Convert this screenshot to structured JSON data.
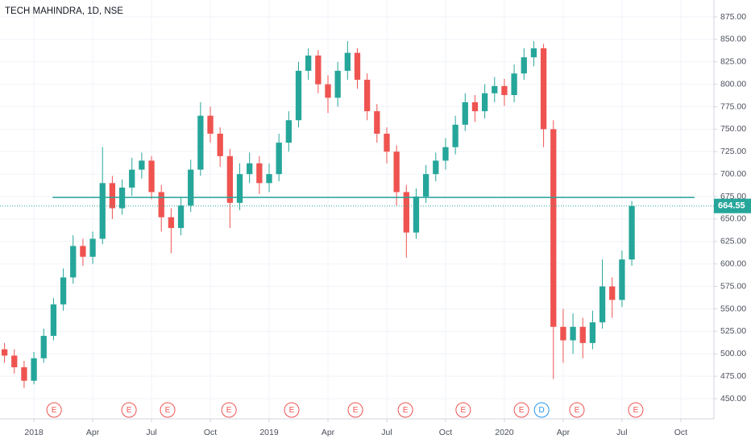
{
  "chart_data": {
    "type": "candlestick",
    "title": "TECH MAHINDRA, 1D, NSE",
    "x": [
      -1.5,
      -1,
      -0.5,
      0,
      0.5,
      1,
      1.5,
      2,
      2.5,
      3,
      3.5,
      4,
      4.5,
      5,
      5.5,
      6,
      6.5,
      7,
      7.5,
      8,
      8.5,
      9,
      9.5,
      10,
      10.5,
      11,
      11.5,
      12,
      12.5,
      13,
      13.5,
      14,
      14.5,
      15,
      15.5,
      16,
      16.5,
      17,
      17.5,
      18,
      18.5,
      19,
      19.5,
      20,
      20.5,
      21,
      21.5,
      22,
      22.5,
      23,
      23.5,
      24,
      24.5,
      25,
      25.5,
      26,
      26.5,
      27,
      27.5,
      28,
      28.5,
      29,
      29.5,
      30,
      30.5
    ],
    "open": [
      505,
      498,
      485,
      470,
      495,
      520,
      555,
      585,
      620,
      608,
      628,
      690,
      662,
      685,
      705,
      715,
      680,
      652,
      640,
      665,
      705,
      765,
      745,
      720,
      668,
      700,
      712,
      690,
      700,
      735,
      760,
      815,
      832,
      800,
      785,
      815,
      835,
      805,
      770,
      745,
      725,
      680,
      635,
      675,
      700,
      715,
      730,
      755,
      780,
      770,
      790,
      798,
      788,
      812,
      830,
      840,
      750,
      530,
      515,
      530,
      512,
      535,
      575,
      560,
      605
    ],
    "high": [
      512,
      505,
      492,
      502,
      528,
      562,
      595,
      632,
      628,
      636,
      730,
      698,
      694,
      718,
      724,
      720,
      688,
      662,
      674,
      716,
      780,
      775,
      752,
      728,
      712,
      724,
      720,
      712,
      745,
      770,
      825,
      840,
      838,
      810,
      825,
      848,
      840,
      812,
      778,
      752,
      732,
      688,
      684,
      710,
      724,
      740,
      765,
      790,
      788,
      800,
      808,
      806,
      822,
      840,
      848,
      845,
      760,
      550,
      545,
      540,
      548,
      605,
      585,
      615,
      670
    ],
    "low": [
      490,
      478,
      462,
      466,
      490,
      515,
      548,
      578,
      598,
      600,
      622,
      650,
      655,
      676,
      695,
      672,
      636,
      612,
      632,
      658,
      698,
      735,
      708,
      640,
      660,
      690,
      678,
      680,
      692,
      725,
      752,
      805,
      790,
      768,
      775,
      805,
      795,
      760,
      735,
      712,
      665,
      607,
      628,
      668,
      692,
      705,
      722,
      748,
      758,
      762,
      780,
      776,
      780,
      805,
      820,
      730,
      472,
      490,
      500,
      495,
      505,
      528,
      540,
      552,
      598
    ],
    "close": [
      498,
      485,
      470,
      495,
      520,
      555,
      585,
      620,
      608,
      628,
      690,
      662,
      685,
      705,
      715,
      680,
      652,
      640,
      665,
      705,
      765,
      745,
      720,
      668,
      700,
      712,
      690,
      700,
      735,
      760,
      815,
      832,
      800,
      785,
      815,
      835,
      805,
      770,
      745,
      725,
      680,
      635,
      675,
      700,
      715,
      730,
      755,
      780,
      770,
      790,
      798,
      788,
      812,
      830,
      840,
      750,
      530,
      515,
      530,
      512,
      535,
      575,
      560,
      605,
      664.55
    ],
    "up_color": "#26a69a",
    "down_color": "#ef5350",
    "xlim": [
      -1.73,
      34.69
    ],
    "ylim": [
      427.6,
      893.8
    ],
    "xticks": [
      {
        "value": 0,
        "label": "2018"
      },
      {
        "value": 3,
        "label": "Apr"
      },
      {
        "value": 6,
        "label": "Jul"
      },
      {
        "value": 9,
        "label": "Oct"
      },
      {
        "value": 12,
        "label": "2019"
      },
      {
        "value": 15,
        "label": "Apr"
      },
      {
        "value": 18,
        "label": "Jul"
      },
      {
        "value": 21,
        "label": "Oct"
      },
      {
        "value": 24,
        "label": "2020"
      },
      {
        "value": 27,
        "label": "Apr"
      },
      {
        "value": 30,
        "label": "Jul"
      },
      {
        "value": 33,
        "label": "Oct"
      }
    ],
    "yticks": [
      {
        "value": 450,
        "label": "450.00"
      },
      {
        "value": 475,
        "label": "475.00"
      },
      {
        "value": 500,
        "label": "500.00"
      },
      {
        "value": 525,
        "label": "525.00"
      },
      {
        "value": 550,
        "label": "550.00"
      },
      {
        "value": 575,
        "label": "575.00"
      },
      {
        "value": 600,
        "label": "600.00"
      },
      {
        "value": 625,
        "label": "625.00"
      },
      {
        "value": 650,
        "label": "650.00"
      },
      {
        "value": 675,
        "label": "675.00"
      },
      {
        "value": 700,
        "label": "700.00"
      },
      {
        "value": 725,
        "label": "725.00"
      },
      {
        "value": 750,
        "label": "750.00"
      },
      {
        "value": 775,
        "label": "775.00"
      },
      {
        "value": 800,
        "label": "800.00"
      },
      {
        "value": 825,
        "label": "825.00"
      },
      {
        "value": 850,
        "label": "850.00"
      },
      {
        "value": 875,
        "label": "875.00"
      }
    ],
    "grid": true,
    "last_price": 664.55,
    "hline": {
      "value": 674,
      "x": [
        0.95,
        33.7
      ],
      "color": "#26a69a"
    },
    "events": [
      {
        "label": "E",
        "x": 1.03,
        "color": "#ef5350"
      },
      {
        "label": "E",
        "x": 4.85,
        "color": "#ef5350"
      },
      {
        "label": "E",
        "x": 6.82,
        "color": "#ef5350"
      },
      {
        "label": "E",
        "x": 9.95,
        "color": "#ef5350"
      },
      {
        "label": "E",
        "x": 13.15,
        "color": "#ef5350"
      },
      {
        "label": "E",
        "x": 16.4,
        "color": "#ef5350"
      },
      {
        "label": "E",
        "x": 18.95,
        "color": "#ef5350"
      },
      {
        "label": "E",
        "x": 21.9,
        "color": "#ef5350"
      },
      {
        "label": "E",
        "x": 24.87,
        "color": "#ef5350"
      },
      {
        "label": "D",
        "x": 25.9,
        "color": "#2196f3"
      },
      {
        "label": "E",
        "x": 27.7,
        "color": "#ef5350"
      },
      {
        "label": "E",
        "x": 30.7,
        "color": "#ef5350"
      }
    ]
  }
}
